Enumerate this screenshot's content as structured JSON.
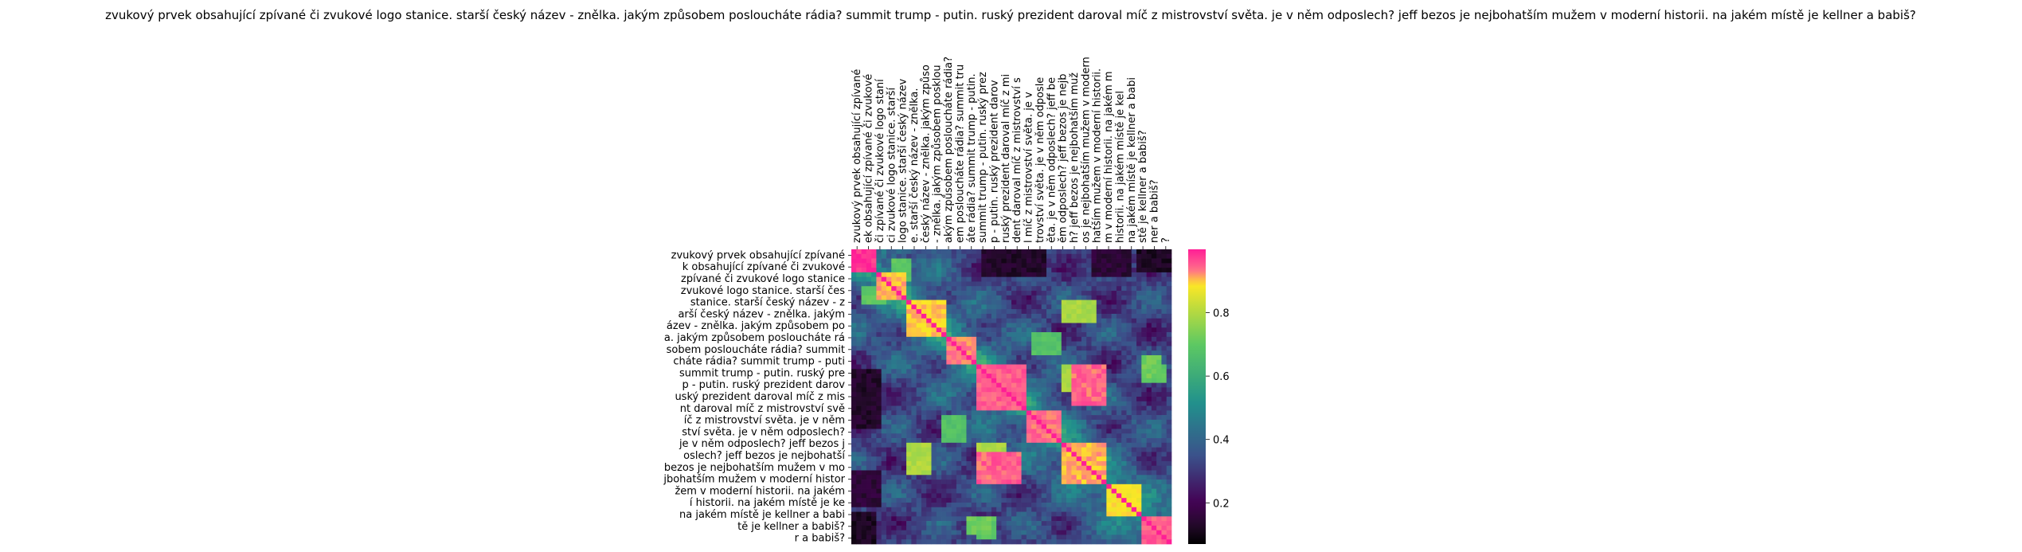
{
  "chart_data": {
    "type": "heatmap",
    "title": "zvukový prvek obsahující zpívané či zvukové logo stanice. starší český název - znělka. jakým způsobem posloucháte rádia? summit trump - putin. ruský prezident daroval míč z mistrovství světa. je v něm odposlech? jeff bezos je nejbohatším mužem v moderní historii. na jakém místě je kellner a babiš?",
    "xlabel": "",
    "ylabel": "",
    "row_labels": [
      "zvukový prvek obsahující zpívané",
      "k obsahující zpívané či zvukové",
      "zpívané či zvukové logo stanice",
      "zvukové logo stanice. starší čes",
      "stanice. starší český název - z",
      "arší český název - znělka. jakým",
      "ázev - znělka. jakým způsobem po",
      "a. jakým způsobem posloucháte rá",
      "sobem posloucháte rádia? summit",
      "cháte rádia? summit trump - puti",
      "summit trump - putin. ruský pre",
      "p - putin. ruský prezident darov",
      "uský prezident daroval míč z mis",
      "nt daroval míč z mistrovství svě",
      "íč z mistrovství světa. je v něm",
      "ství světa. je v něm odposlech?",
      "je v něm odposlech? jeff bezos j",
      "oslech? jeff bezos je nejbohatší",
      "bezos je nejbohatším mužem v mo",
      "jbohatším mužem v moderní histor",
      "žem v moderní historii. na jakém",
      "í historii. na jakém místě je ke",
      "na jakém místě je kellner a babi",
      "tě je kellner a babiš?",
      "r a babiš?"
    ],
    "col_labels": [
      "zvukový prvek obsahující zpívané",
      "ek obsahující zpívané či zvukové",
      "či zpívané či zvukové logo staní",
      "ci zvukové logo stanice. starší",
      "logo stanice. starší český název",
      "e. starší český název - znělka.",
      "český název - znělka. jakým způso",
      "- znělka. jakým způsobem posklou",
      "akým způsobem posloucháte rádia?",
      "em posloucháte rádia? summit tru",
      "áte rádia? summit trump - putin.",
      "summit trump - putin. ruský prez",
      "p - putin. ruský prezident darov",
      "ruský prezident daroval míč z mi",
      "dent daroval míč z mistrovství s",
      "l míč z mistrovství světa. je v",
      "trovství světa. je v něm odposle",
      "ěta. je v něm odposlech? jeff be",
      "ěm odposlech? jeff bezos je nejb",
      "h? jeff bezos je nejbohatším muž",
      "os je nejbohatším mužem v modern",
      "hatším mužem v moderní historii.",
      "m v moderní historii. na jakém m",
      "historii. na jakém místě je kel",
      "na jakém místě je kellner a babi",
      "stě je kellner a babiš?",
      "ner a babiš?",
      "?"
    ],
    "grid_size": 64,
    "value_range": [
      0.07,
      1.0
    ],
    "colorbar_ticks": [
      0.2,
      0.4,
      0.6,
      0.8
    ],
    "colormap_note": "viridis-like with saturated pink at max",
    "blocks": [
      {
        "from": 0,
        "to": 5,
        "value": 1.0
      },
      {
        "from": 5,
        "to": 11,
        "value": 0.93
      },
      {
        "from": 11,
        "to": 19,
        "value": 0.92
      },
      {
        "from": 19,
        "to": 25,
        "value": 0.95
      },
      {
        "from": 25,
        "to": 35,
        "value": 0.97
      },
      {
        "from": 35,
        "to": 42,
        "value": 0.96
      },
      {
        "from": 42,
        "to": 51,
        "value": 0.93
      },
      {
        "from": 51,
        "to": 58,
        "value": 0.9
      },
      {
        "from": 58,
        "to": 64,
        "value": 0.97
      }
    ],
    "hotspots": [
      {
        "r": [
          25,
          34
        ],
        "c": [
          44,
          51
        ],
        "value": 0.97
      },
      {
        "r": [
          42,
          49
        ],
        "c": [
          11,
          16
        ],
        "value": 0.82
      },
      {
        "r": [
          42,
          49
        ],
        "c": [
          25,
          31
        ],
        "value": 0.82
      },
      {
        "r": [
          23,
          28
        ],
        "c": [
          58,
          62
        ],
        "value": 0.75
      },
      {
        "r": [
          18,
          23
        ],
        "c": [
          36,
          42
        ],
        "value": 0.7
      },
      {
        "r": [
          2,
          7
        ],
        "c": [
          8,
          12
        ],
        "value": 0.72
      },
      {
        "r": [
          58,
          63
        ],
        "c": [
          25,
          29
        ],
        "value": 0.72
      }
    ],
    "lowspots": [
      {
        "r": [
          0,
          6
        ],
        "c": [
          26,
          39
        ],
        "value": 0.1
      },
      {
        "r": [
          0,
          6
        ],
        "c": [
          48,
          56
        ],
        "value": 0.12
      },
      {
        "r": [
          26,
          36
        ],
        "c": [
          0,
          6
        ],
        "value": 0.12
      },
      {
        "r": [
          57,
          64
        ],
        "c": [
          0,
          5
        ],
        "value": 0.09
      }
    ]
  }
}
